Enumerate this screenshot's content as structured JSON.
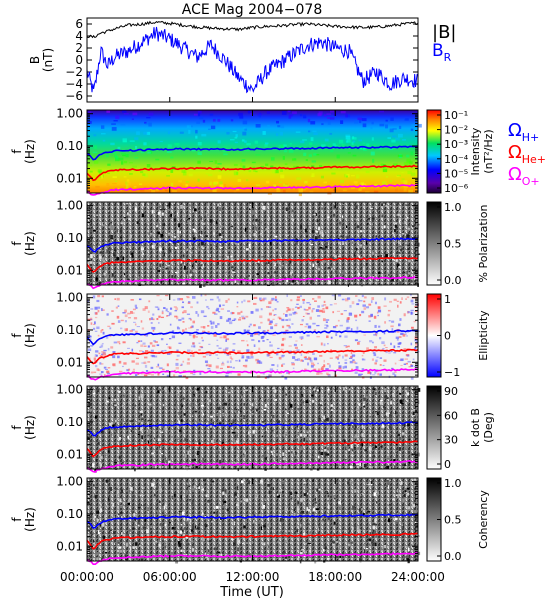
{
  "title": "ACE Mag 2004−078",
  "x_axis": {
    "label": "Time (UT)",
    "ticks": [
      "00:00:00",
      "06:00:00",
      "12:00:00",
      "18:00:00",
      "24:00:00"
    ]
  },
  "colors": {
    "B_total": "#000000",
    "B_R": "#0000ff",
    "omega_H": "#0000ff",
    "omega_He": "#ff0000",
    "omega_O": "#ff00ff"
  },
  "legend": {
    "B_total": "|B|",
    "B_R": "B",
    "B_R_sub": "R",
    "omega_H": "Ω",
    "omega_H_sub": "H+",
    "omega_He": "Ω",
    "omega_He_sub": "He+",
    "omega_O": "Ω",
    "omega_O_sub": "O+"
  },
  "chart_data": [
    {
      "type": "line",
      "title": "ACE Mag 2004−078",
      "ylabel": "B",
      "ylabel_unit": "(nT)",
      "ylim": [
        -7,
        7
      ],
      "yticks": [
        "6",
        "4",
        "2",
        "0",
        "−2",
        "−4",
        "−6"
      ],
      "x_hours": [
        0,
        0.5,
        1,
        1.5,
        2,
        3,
        4,
        5,
        6,
        7,
        8,
        9,
        10,
        11,
        12,
        13,
        14,
        15,
        16,
        17,
        18,
        19,
        20,
        21,
        22,
        23,
        24
      ],
      "series": [
        {
          "name": "|B|",
          "values": [
            4.0,
            3.8,
            4.5,
            4.8,
            5.2,
            5.8,
            6.0,
            6.3,
            6.1,
            5.8,
            5.5,
            5.3,
            5.2,
            5.1,
            5.4,
            5.6,
            5.7,
            5.9,
            6.0,
            5.8,
            5.6,
            5.5,
            5.4,
            5.5,
            5.7,
            6.0,
            6.2
          ]
        },
        {
          "name": "B_R",
          "values": [
            -2.0,
            -5.5,
            1.5,
            -1.0,
            0.5,
            1.5,
            3.0,
            4.5,
            3.5,
            2.0,
            0.5,
            2.5,
            0.0,
            -3.0,
            -5.0,
            -2.0,
            -0.5,
            1.0,
            2.5,
            3.0,
            2.0,
            1.5,
            -3.5,
            -2.0,
            -4.0,
            -3.0,
            -3.5
          ]
        }
      ]
    },
    {
      "type": "heatmap",
      "ylabel": "f",
      "ylabel_unit": "(Hz)",
      "yticks": [
        "1.00",
        "0.10",
        "0.01"
      ],
      "colorbar_label": "Intensity",
      "colorbar_unit": "(nT²/Hz)",
      "colorbar_ticks": [
        "10⁻¹",
        "10⁻²",
        "10⁻³",
        "10⁻⁴",
        "10⁻⁵",
        "10⁻⁶"
      ],
      "x_hours": [
        0,
        0.5,
        1,
        1.5,
        2,
        4,
        6,
        8,
        10,
        12,
        14,
        16,
        18,
        20,
        22,
        24
      ],
      "gyro_lines_hz": {
        "H+": [
          0.06,
          0.035,
          0.055,
          0.065,
          0.07,
          0.075,
          0.08,
          0.08,
          0.078,
          0.08,
          0.082,
          0.085,
          0.088,
          0.09,
          0.092,
          0.095
        ],
        "He+": [
          0.015,
          0.008,
          0.014,
          0.016,
          0.018,
          0.019,
          0.02,
          0.02,
          0.0195,
          0.02,
          0.0205,
          0.021,
          0.022,
          0.0225,
          0.023,
          0.024
        ],
        "O+": [
          0.0038,
          0.0028,
          0.0035,
          0.004,
          0.0044,
          0.0047,
          0.005,
          0.005,
          0.0049,
          0.005,
          0.0051,
          0.0053,
          0.0055,
          0.0056,
          0.0058,
          0.006
        ]
      }
    },
    {
      "type": "heatmap",
      "ylabel": "f",
      "ylabel_unit": "(Hz)",
      "yticks": [
        "1.00",
        "0.10",
        "0.01"
      ],
      "colorbar_label": "% Polarization",
      "colorbar_ticks": [
        "1.0",
        "0.5",
        "0.0"
      ]
    },
    {
      "type": "heatmap",
      "ylabel": "f",
      "ylabel_unit": "(Hz)",
      "yticks": [
        "1.00",
        "0.10",
        "0.01"
      ],
      "colorbar_label": "Ellipticity",
      "colorbar_ticks": [
        "1",
        "0",
        "−1"
      ]
    },
    {
      "type": "heatmap",
      "ylabel": "f",
      "ylabel_unit": "(Hz)",
      "yticks": [
        "1.00",
        "0.10",
        "0.01"
      ],
      "colorbar_label": "k dot B",
      "colorbar_unit": "(Deg)",
      "colorbar_ticks": [
        "90",
        "60",
        "30",
        "0"
      ]
    },
    {
      "type": "heatmap",
      "ylabel": "f",
      "ylabel_unit": "(Hz)",
      "yticks": [
        "1.00",
        "0.10",
        "0.01"
      ],
      "colorbar_label": "Coherency",
      "colorbar_ticks": [
        "1.0",
        "0.5",
        "0.0"
      ]
    }
  ]
}
